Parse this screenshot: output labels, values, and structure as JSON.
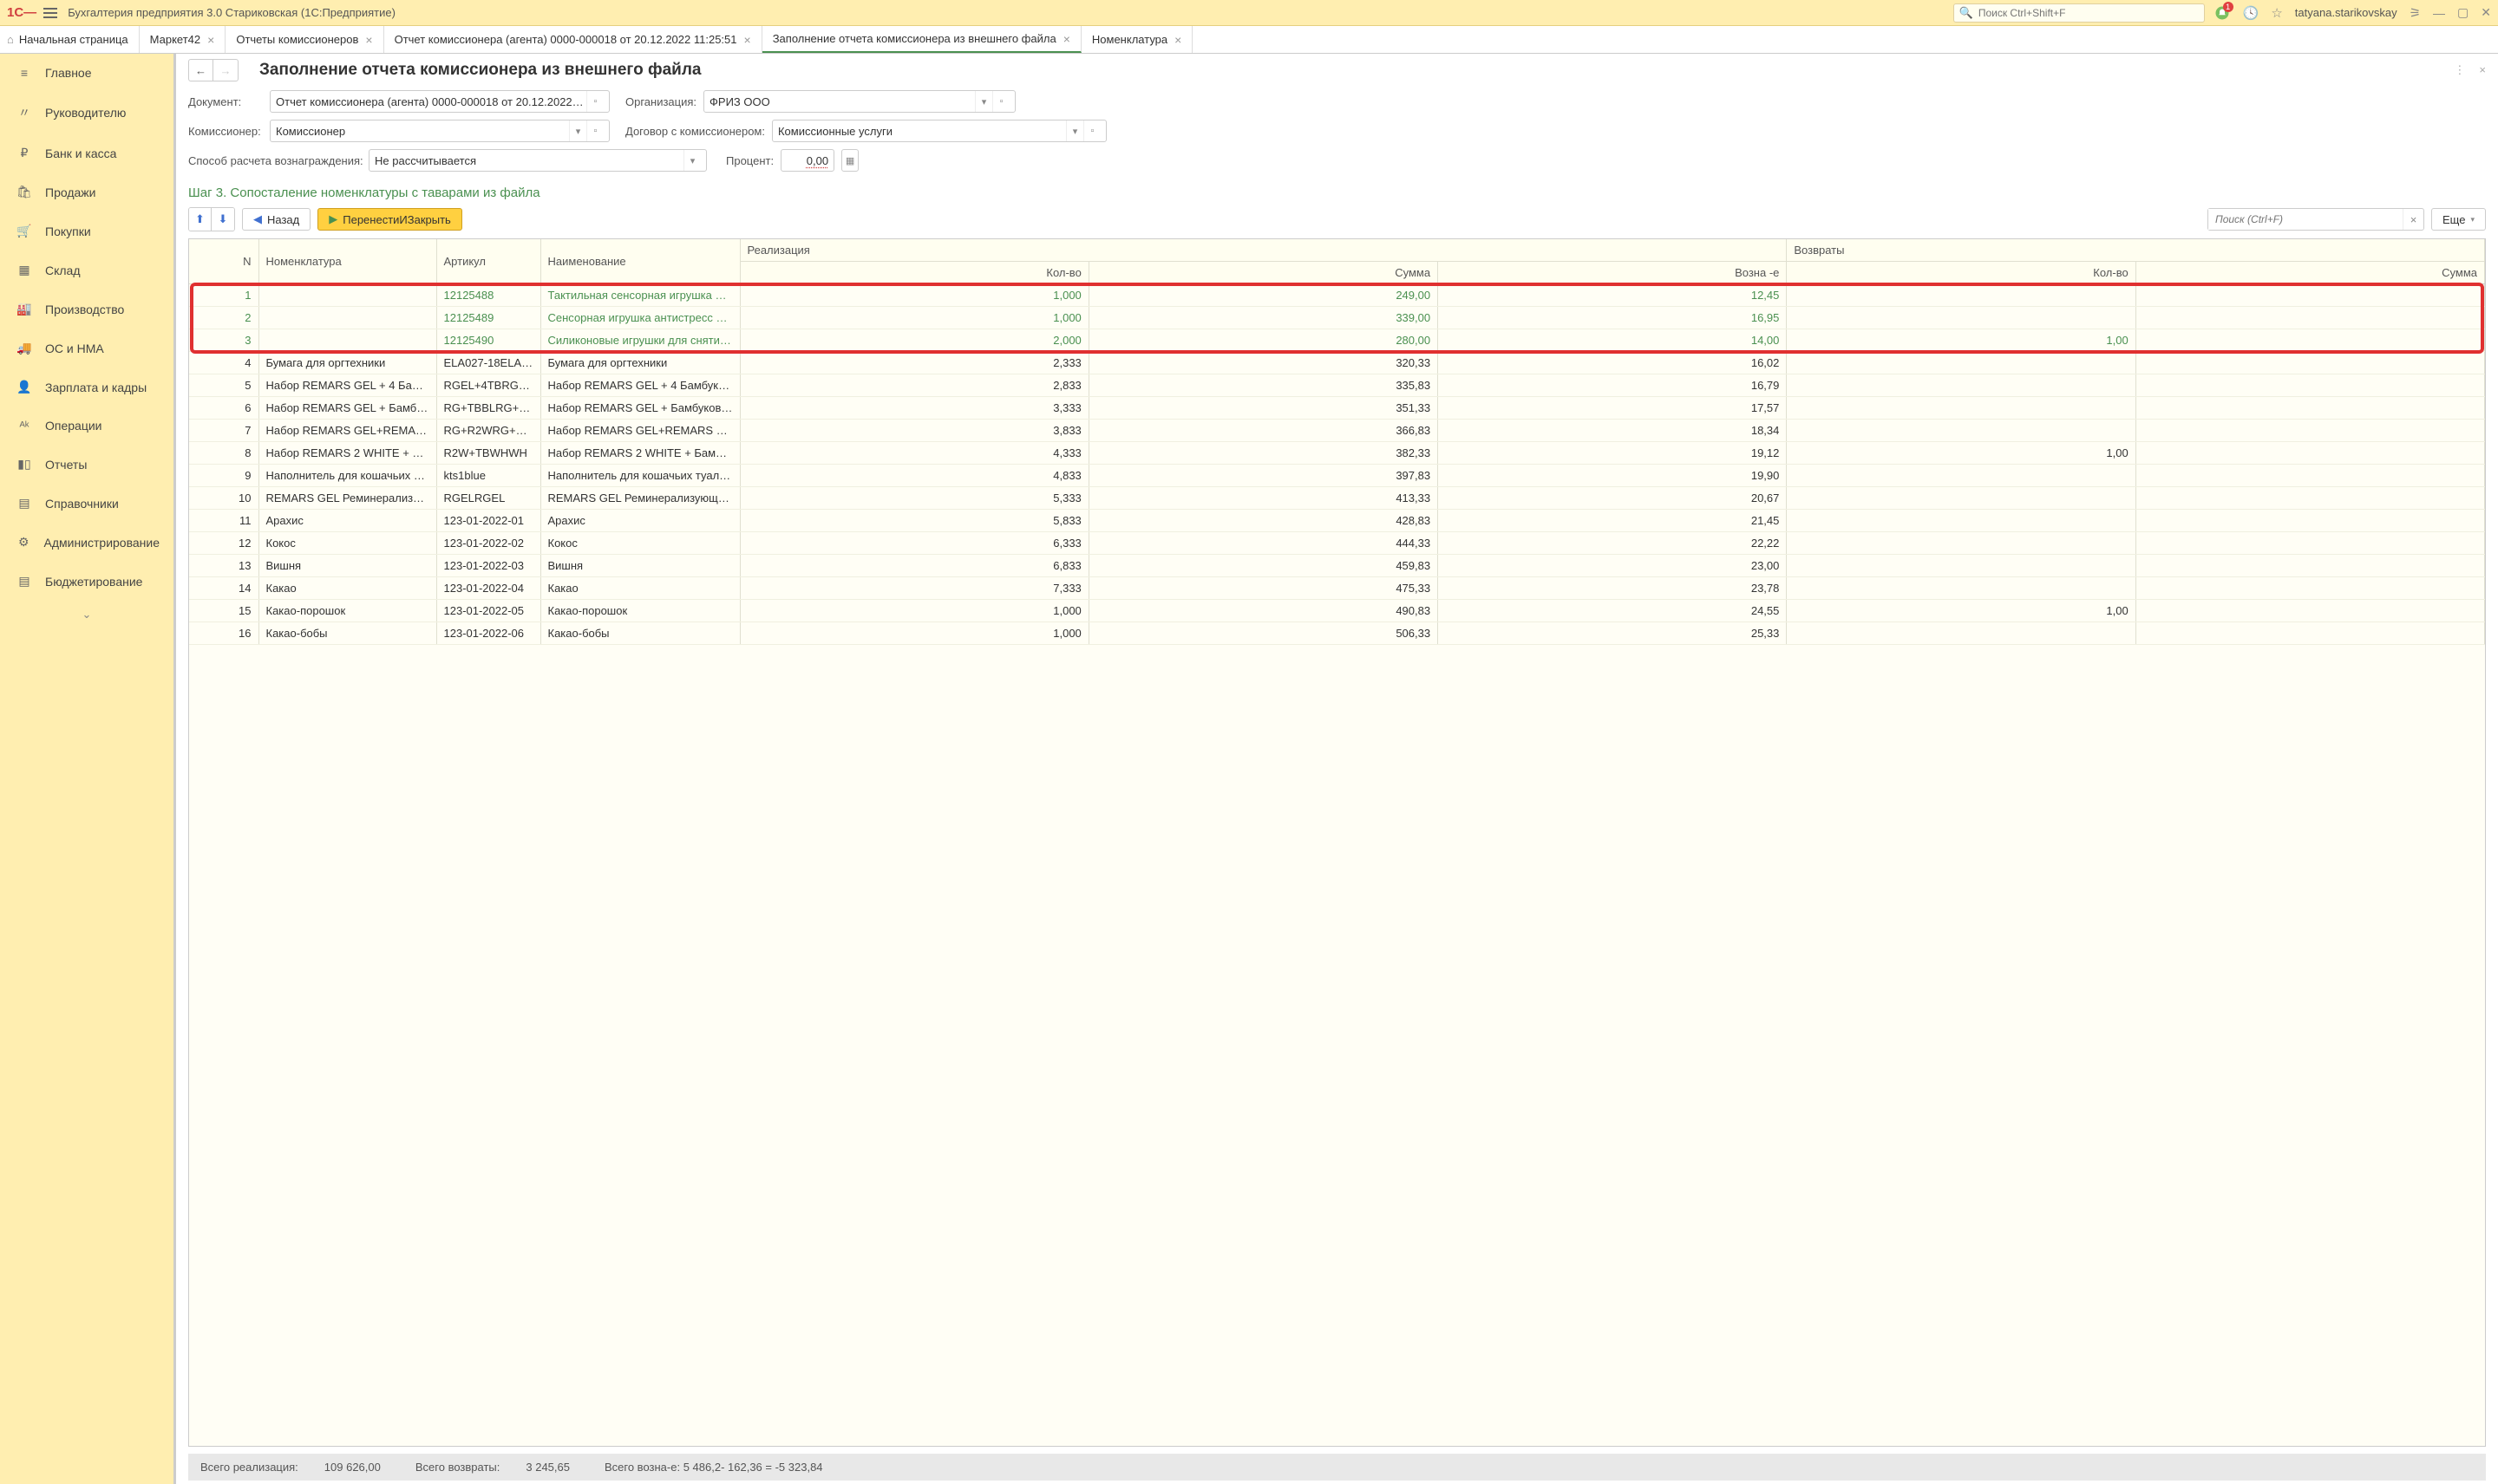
{
  "app": {
    "title": "Бухгалтерия предприятия 3.0 Стариковская  (1С:Предприятие)",
    "searchPlaceholder": "Поиск Ctrl+Shift+F",
    "user": "tatyana.starikovskay",
    "bellCount": "1"
  },
  "tabs": {
    "home": "Начальная страница",
    "t1": "Маркет42",
    "t2": "Отчеты комиссионеров",
    "t3": "Отчет комиссионера (агента) 0000-000018 от 20.12.2022 11:25:51",
    "t4": "Заполнение  отчета комиссионера из внешнего  файла",
    "t5": "Номенклатура"
  },
  "nav": {
    "n1": "Главное",
    "n2": "Руководителю",
    "n3": "Банк и касса",
    "n4": "Продажи",
    "n5": "Покупки",
    "n6": "Склад",
    "n7": "Производство",
    "n8": "ОС и НМА",
    "n9": "Зарплата и кадры",
    "n10": "Операции",
    "n11": "Отчеты",
    "n12": "Справочники",
    "n13": "Администрирование",
    "n14": "Бюджетирование"
  },
  "page": {
    "title": "Заполнение  отчета комиссионера из внешнего  файла"
  },
  "form": {
    "docLabel": "Документ:",
    "docValue": "Отчет комиссионера (агента) 0000-000018 от 20.12.2022 11:25:5",
    "orgLabel": "Организация:",
    "orgValue": "ФРИЗ ООО",
    "commLabel": "Комиссионер:",
    "commValue": "Комиссионер",
    "contractLabel": "Договор с комиссионером:",
    "contractValue": "Комиссионные услуги",
    "methodLabel": "Способ расчета вознаграждения:",
    "methodValue": "Не рассчитывается",
    "pctLabel": "Процент:",
    "pctValue": "0,00"
  },
  "step": "Шаг 3. Сопосталение номенклатуры с таварами из файла",
  "toolbar": {
    "back": "Назад",
    "transfer": "ПеренестиИЗакрыть",
    "searchPh": "Поиск (Ctrl+F)",
    "more": "Еще"
  },
  "table": {
    "headers": {
      "n": "N",
      "nom": "Номенклатура",
      "art": "Артикул",
      "name": "Наименование",
      "real": "Реализация",
      "ret": "Возвраты",
      "qty": "Кол-во",
      "sum": "Сумма",
      "fee": "Возна -е",
      "rqty": "Кол-во",
      "rsum": "Сумма"
    },
    "rows": [
      {
        "n": "1",
        "nom": "",
        "art": "12125488",
        "name": "Тактильная сенсорная игрушка ан…",
        "qty": "1,000",
        "sum": "249,00",
        "fee": "12,45",
        "rqty": "",
        "hl": true
      },
      {
        "n": "2",
        "nom": "",
        "art": "12125489",
        "name": "Сенсорная игрушка антистресс Br…",
        "qty": "1,000",
        "sum": "339,00",
        "fee": "16,95",
        "rqty": "",
        "hl": true
      },
      {
        "n": "3",
        "nom": "",
        "art": "12125490",
        "name": "Силиконовые игрушки для снятия …",
        "qty": "2,000",
        "sum": "280,00",
        "fee": "14,00",
        "rqty": "1,00",
        "hl": true
      },
      {
        "n": "4",
        "nom": "Бумага для оргтехники",
        "art": "ELA027-18ELA…",
        "name": "Бумага для оргтехники",
        "qty": "2,333",
        "sum": "320,33",
        "fee": "16,02",
        "rqty": ""
      },
      {
        "n": "5",
        "nom": "Набор REMARS GEL + 4 Бам…",
        "art": "RGEL+4TBRGE…",
        "name": "Набор REMARS GEL + 4 Бамбуко…",
        "qty": "2,833",
        "sum": "335,83",
        "fee": "16,79",
        "rqty": ""
      },
      {
        "n": "6",
        "nom": "Набор REMARS GEL + Бамб…",
        "art": "RG+TBBLRG+T…",
        "name": "Набор REMARS GEL + Бамбуков…",
        "qty": "3,333",
        "sum": "351,33",
        "fee": "17,57",
        "rqty": ""
      },
      {
        "n": "7",
        "nom": "Набор REMARS GEL+REMA…",
        "art": "RG+R2WRG+R…",
        "name": "Набор REMARS GEL+REMARS 2 …",
        "qty": "3,833",
        "sum": "366,83",
        "fee": "18,34",
        "rqty": ""
      },
      {
        "n": "8",
        "nom": "Набор REMARS 2 WHITE + Б…",
        "art": "R2W+TBWHWH",
        "name": "Набор REMARS 2 WHITE + Бамбу…",
        "qty": "4,333",
        "sum": "382,33",
        "fee": "19,12",
        "rqty": "1,00"
      },
      {
        "n": "9",
        "nom": "Наполнитель для кошачьих т…",
        "art": "kts1blue",
        "name": "Наполнитель для кошачьих туалет…",
        "qty": "4,833",
        "sum": "397,83",
        "fee": "19,90",
        "rqty": ""
      },
      {
        "n": "10",
        "nom": "REMARS GEL Реминерализу…",
        "art": "RGELRGEL",
        "name": "REMARS GEL Реминерализующи…",
        "qty": "5,333",
        "sum": "413,33",
        "fee": "20,67",
        "rqty": ""
      },
      {
        "n": "11",
        "nom": "Арахис",
        "art": "123-01-2022-01",
        "name": "Арахис",
        "qty": "5,833",
        "sum": "428,83",
        "fee": "21,45",
        "rqty": ""
      },
      {
        "n": "12",
        "nom": "Кокос",
        "art": "123-01-2022-02",
        "name": "Кокос",
        "qty": "6,333",
        "sum": "444,33",
        "fee": "22,22",
        "rqty": ""
      },
      {
        "n": "13",
        "nom": "Вишня",
        "art": "123-01-2022-03",
        "name": "Вишня",
        "qty": "6,833",
        "sum": "459,83",
        "fee": "23,00",
        "rqty": ""
      },
      {
        "n": "14",
        "nom": "Какао",
        "art": "123-01-2022-04",
        "name": "Какао",
        "qty": "7,333",
        "sum": "475,33",
        "fee": "23,78",
        "rqty": ""
      },
      {
        "n": "15",
        "nom": "Какао-порошок",
        "art": "123-01-2022-05",
        "name": "Какао-порошок",
        "qty": "1,000",
        "sum": "490,83",
        "fee": "24,55",
        "rqty": "1,00"
      },
      {
        "n": "16",
        "nom": "Какао-бобы",
        "art": "123-01-2022-06",
        "name": "Какао-бобы",
        "qty": "1,000",
        "sum": "506,33",
        "fee": "25,33",
        "rqty": ""
      }
    ]
  },
  "footer": {
    "realLabel": "Всего реализация:",
    "realVal": "109 626,00",
    "retLabel": "Всего возвраты:",
    "retVal": "3 245,65",
    "feeLabel": "Всего возна-е:",
    "feeVal": "5 486,2- 162,36 = -5 323,84"
  }
}
